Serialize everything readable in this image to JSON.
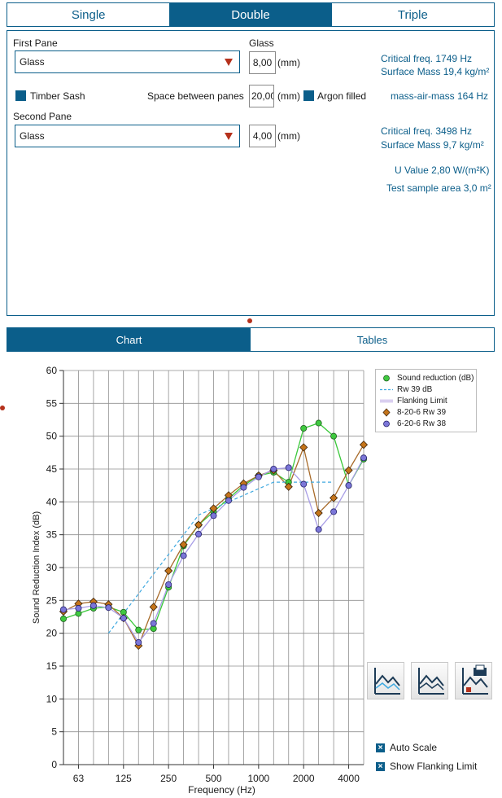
{
  "tabs": [
    {
      "label": "Single",
      "active": false
    },
    {
      "label": "Double",
      "active": true
    },
    {
      "label": "Triple",
      "active": false
    }
  ],
  "form": {
    "first_pane_label": "First Pane",
    "first_pane_value": "Glass",
    "glass_label": "Glass",
    "glass_thickness_1": "8,00",
    "unit_mm": "(mm)",
    "timber_sash_label": "Timber Sash",
    "space_label": "Space between panes",
    "space_value": "20,00",
    "argon_label": "Argon filled",
    "second_pane_label": "Second Pane",
    "second_pane_value": "Glass",
    "glass_thickness_2": "4,00"
  },
  "results": {
    "critical_freq_1": "Critical freq.  1749 Hz",
    "surface_mass_1": "Surface Mass 19,4 kg/m²",
    "mass_air_mass": "mass-air-mass  164 Hz",
    "critical_freq_2": "Critical freq.  3498 Hz",
    "surface_mass_2": "Surface Mass 9,7 kg/m²",
    "u_value": "U Value 2,80 W/(m²K)",
    "test_area": "Test sample area 3,0 m²"
  },
  "view_tabs": [
    {
      "label": "Chart",
      "active": true
    },
    {
      "label": "Tables",
      "active": false
    }
  ],
  "options": {
    "auto_scale": "Auto Scale",
    "show_flanking": "Show Flanking Limit"
  },
  "icons": [
    "chart-view-icon",
    "chart-compare-icon",
    "chart-export-icon"
  ],
  "colors": {
    "accent": "#0b5e8a",
    "marker": "#b5311c"
  },
  "chart_data": {
    "type": "line",
    "xlabel": "Frequency (Hz)",
    "ylabel": "Sound Reduction Index (dB)",
    "ylim": [
      0,
      60
    ],
    "yticks": [
      0,
      5,
      10,
      15,
      20,
      25,
      30,
      35,
      40,
      45,
      50,
      55,
      60
    ],
    "xtick_labels": [
      {
        "label": "63",
        "index": 1
      },
      {
        "label": "125",
        "index": 4
      },
      {
        "label": "250",
        "index": 7
      },
      {
        "label": "500",
        "index": 10
      },
      {
        "label": "1000",
        "index": 13
      },
      {
        "label": "2000",
        "index": 16
      },
      {
        "label": "4000",
        "index": 19
      }
    ],
    "frequencies": [
      50,
      63,
      80,
      100,
      125,
      160,
      200,
      250,
      315,
      400,
      500,
      630,
      800,
      1000,
      1250,
      1600,
      2000,
      2500,
      3150,
      4000,
      5000
    ],
    "grid": true,
    "legend": [
      {
        "label": "Sound reduction (dB)",
        "kind": "green-circle"
      },
      {
        "label": "Rw 39 dB",
        "kind": "dashed-blue"
      },
      {
        "label": "Flanking Limit",
        "kind": "lavender-band"
      },
      {
        "label": "8-20-6 Rw 39",
        "kind": "orange-diamond"
      },
      {
        "label": "6-20-6 Rw 38",
        "kind": "purple-circle"
      }
    ],
    "series": [
      {
        "name": "Sound reduction (dB)",
        "color": "#3fc93f",
        "line": "#39c839",
        "marker": "circle",
        "values": [
          22.2,
          23,
          23.8,
          24,
          23.2,
          20.5,
          20.7,
          27,
          33.3,
          36.5,
          38.5,
          40.5,
          42.5,
          44,
          44.5,
          43,
          51.2,
          52,
          50,
          42.5,
          46.5
        ]
      },
      {
        "name": "8-20-6 Rw 39",
        "color": "#c4741a",
        "line": "#a86b2a",
        "marker": "diamond",
        "values": [
          23.3,
          24.5,
          24.8,
          24.4,
          22.3,
          18.1,
          24,
          29.5,
          33.5,
          36.5,
          39,
          41,
          42.8,
          44,
          44.8,
          42.3,
          48.3,
          38.3,
          40.6,
          44.8,
          48.7
        ]
      },
      {
        "name": "6-20-6 Rw 38",
        "color": "#7b76d8",
        "line": "#a89de6",
        "marker": "circle",
        "values": [
          23.6,
          23.8,
          24.2,
          23.9,
          22.3,
          18.6,
          21.5,
          27.4,
          31.8,
          35.1,
          37.9,
          40.2,
          42.2,
          43.8,
          45,
          45.2,
          42.7,
          35.8,
          38.5,
          42.5,
          46.7
        ]
      },
      {
        "name": "Rw 39 dB",
        "color": "#3fa9e0",
        "line": "dashed",
        "values": [
          null,
          null,
          null,
          20,
          23,
          26,
          29,
          32,
          35,
          38,
          39,
          40,
          41,
          42,
          43,
          43,
          43,
          43,
          43,
          null,
          null
        ]
      }
    ]
  }
}
